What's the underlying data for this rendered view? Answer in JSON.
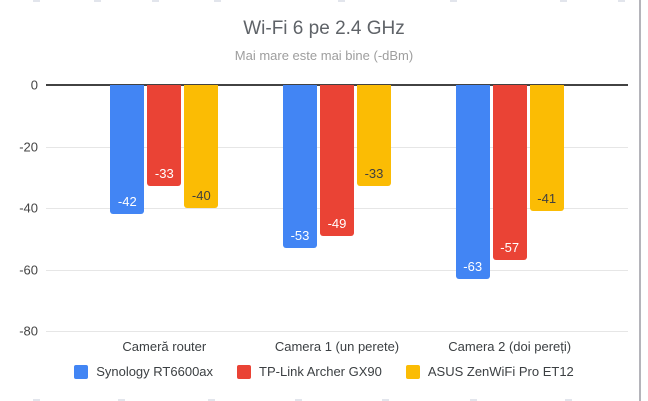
{
  "chart_data": {
    "type": "bar",
    "orientation": "vertical-negative",
    "title": "Wi-Fi 6 pe 2.4 GHz",
    "subtitle": "Mai mare este mai bine (-dBm)",
    "xlabel": "",
    "ylabel": "",
    "ylim": [
      -80,
      0
    ],
    "yticks": [
      "0",
      "-20",
      "-40",
      "-60",
      "-80"
    ],
    "grid": true,
    "legend_position": "bottom",
    "categories": [
      "Cameră router",
      "Camera 1 (un perete)",
      "Camera 2 (doi pereți)"
    ],
    "series": [
      {
        "name": "Synology RT6600ax",
        "color": "#4285F4",
        "label_color": "#ffffff",
        "values": [
          -42,
          -53,
          -63
        ]
      },
      {
        "name": "TP-Link Archer GX90",
        "color": "#EA4335",
        "label_color": "#ffffff",
        "values": [
          -33,
          -49,
          -57
        ]
      },
      {
        "name": "ASUS ZenWiFi Pro ET12",
        "color": "#FBBC04",
        "label_color": "#404040",
        "values": [
          -40,
          -33,
          -41
        ]
      }
    ],
    "colors": {
      "zero_axis_line": "#424242",
      "gridline": "#e6e6e6",
      "tick_label": "#444444",
      "category_label": "#3c4043",
      "title": "#5f6368",
      "subtitle": "#9e9e9e",
      "background": "#ffffff"
    }
  },
  "artifacts": {
    "right_divider": true,
    "top_dash_x": [
      33,
      94,
      152,
      214,
      338,
      450,
      560,
      618
    ],
    "bottom_dash_x": [
      33,
      118,
      208,
      295,
      382,
      470,
      565
    ]
  }
}
